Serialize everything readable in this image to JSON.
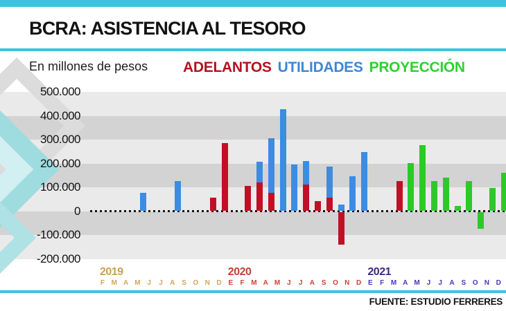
{
  "header": {
    "title": "BCRA: ASISTENCIA AL TESORO",
    "subtitle": "En millones de pesos",
    "source": "FUENTE: ESTUDIO FERRERES"
  },
  "theme": {
    "accent_cyan": "#3ac4de",
    "stripe_light": "#eaeaea",
    "stripe_dark": "#d3d3d3",
    "watermark_teal": "#9edce0",
    "watermark_pale_teal": "#d2eff1",
    "watermark_gray": "#dcdcdc"
  },
  "legend": [
    {
      "label": "ADELANTOS",
      "color": "#b01320",
      "series": "adelantos"
    },
    {
      "label": "UTILIDADES",
      "color": "#3d87d5",
      "series": "utilidades"
    },
    {
      "label": "PROYECCIÓN",
      "color": "#2fd02f",
      "series": "proyeccion"
    }
  ],
  "chart_data": {
    "type": "bar",
    "title": "BCRA: ASISTENCIA AL TESORO",
    "units_label": "En millones de pesos",
    "ylim": [
      -200000,
      500000
    ],
    "grid": "striped-bands",
    "legend_position": "top",
    "ytick_labels": [
      "500.000",
      "400.000",
      "300.000",
      "200.000",
      "100.000",
      "0",
      "-100.000",
      "-200.000"
    ],
    "series_colors": {
      "adelantos": "#c11026",
      "utilidades": "#3d8ce2",
      "proyeccion": "#2ec82a"
    },
    "years": [
      {
        "label": "2019",
        "label_color": "#c9a14f",
        "month_color": "#d2a55a",
        "months": [
          "F",
          "M",
          "A",
          "M",
          "J",
          "J",
          "A",
          "S",
          "O",
          "N",
          "D"
        ]
      },
      {
        "label": "2020",
        "label_color": "#bf4038",
        "month_color": "#cc4136",
        "months": [
          "E",
          "F",
          "M",
          "A",
          "M",
          "J",
          "J",
          "A",
          "S",
          "O",
          "N",
          "D"
        ]
      },
      {
        "label": "2021",
        "label_color": "#3b2a7d",
        "month_color": "#4636b8",
        "months": [
          "E",
          "F",
          "M",
          "A",
          "M",
          "J",
          "J",
          "A",
          "S",
          "O",
          "N",
          "D"
        ]
      }
    ],
    "bars": [
      {
        "year": "2019",
        "month_index": 3,
        "segments": [
          {
            "series": "utilidades",
            "value": 75000
          }
        ]
      },
      {
        "year": "2019",
        "month_index": 6,
        "segments": [
          {
            "series": "utilidades",
            "value": 125000
          }
        ]
      },
      {
        "year": "2019",
        "month_index": 9,
        "segments": [
          {
            "series": "adelantos",
            "value": 55000
          }
        ]
      },
      {
        "year": "2019",
        "month_index": 10,
        "segments": [
          {
            "series": "adelantos",
            "value": 285000
          }
        ]
      },
      {
        "year": "2020",
        "month_index": 1,
        "segments": [
          {
            "series": "adelantos",
            "value": 105000
          }
        ]
      },
      {
        "year": "2020",
        "month_index": 2,
        "segments": [
          {
            "series": "adelantos",
            "value": 120000
          },
          {
            "series": "utilidades",
            "value": 85000
          }
        ]
      },
      {
        "year": "2020",
        "month_index": 3,
        "segments": [
          {
            "series": "adelantos",
            "value": 75000
          },
          {
            "series": "utilidades",
            "value": 230000
          }
        ]
      },
      {
        "year": "2020",
        "month_index": 4,
        "segments": [
          {
            "series": "utilidades",
            "value": 425000
          }
        ]
      },
      {
        "year": "2020",
        "month_index": 5,
        "segments": [
          {
            "series": "utilidades",
            "value": 195000
          }
        ]
      },
      {
        "year": "2020",
        "month_index": 6,
        "segments": [
          {
            "series": "adelantos",
            "value": 110000
          },
          {
            "series": "utilidades",
            "value": 100000
          }
        ]
      },
      {
        "year": "2020",
        "month_index": 7,
        "segments": [
          {
            "series": "adelantos",
            "value": 40000
          }
        ]
      },
      {
        "year": "2020",
        "month_index": 8,
        "segments": [
          {
            "series": "adelantos",
            "value": 55000
          },
          {
            "series": "utilidades",
            "value": 130000
          }
        ]
      },
      {
        "year": "2020",
        "month_index": 9,
        "segments": [
          {
            "series": "utilidades",
            "value": 25000
          },
          {
            "series": "adelantos",
            "value": -135000
          }
        ]
      },
      {
        "year": "2020",
        "month_index": 10,
        "segments": [
          {
            "series": "utilidades",
            "value": 145000
          }
        ]
      },
      {
        "year": "2020",
        "month_index": 11,
        "segments": [
          {
            "series": "utilidades",
            "value": 245000
          }
        ]
      },
      {
        "year": "2021",
        "month_index": 2,
        "segments": [
          {
            "series": "adelantos",
            "value": 125000
          }
        ]
      },
      {
        "year": "2021",
        "month_index": 3,
        "segments": [
          {
            "series": "proyeccion",
            "value": 200000
          }
        ]
      },
      {
        "year": "2021",
        "month_index": 4,
        "segments": [
          {
            "series": "proyeccion",
            "value": 275000
          }
        ]
      },
      {
        "year": "2021",
        "month_index": 5,
        "segments": [
          {
            "series": "proyeccion",
            "value": 125000
          }
        ]
      },
      {
        "year": "2021",
        "month_index": 6,
        "segments": [
          {
            "series": "proyeccion",
            "value": 140000
          }
        ]
      },
      {
        "year": "2021",
        "month_index": 7,
        "segments": [
          {
            "series": "proyeccion",
            "value": 20000
          }
        ]
      },
      {
        "year": "2021",
        "month_index": 8,
        "segments": [
          {
            "series": "proyeccion",
            "value": 125000
          }
        ]
      },
      {
        "year": "2021",
        "month_index": 9,
        "segments": [
          {
            "series": "proyeccion",
            "value": -70000
          }
        ]
      },
      {
        "year": "2021",
        "month_index": 10,
        "segments": [
          {
            "series": "proyeccion",
            "value": 95000
          }
        ]
      },
      {
        "year": "2021",
        "month_index": 11,
        "segments": [
          {
            "series": "proyeccion",
            "value": 160000
          }
        ]
      }
    ]
  }
}
